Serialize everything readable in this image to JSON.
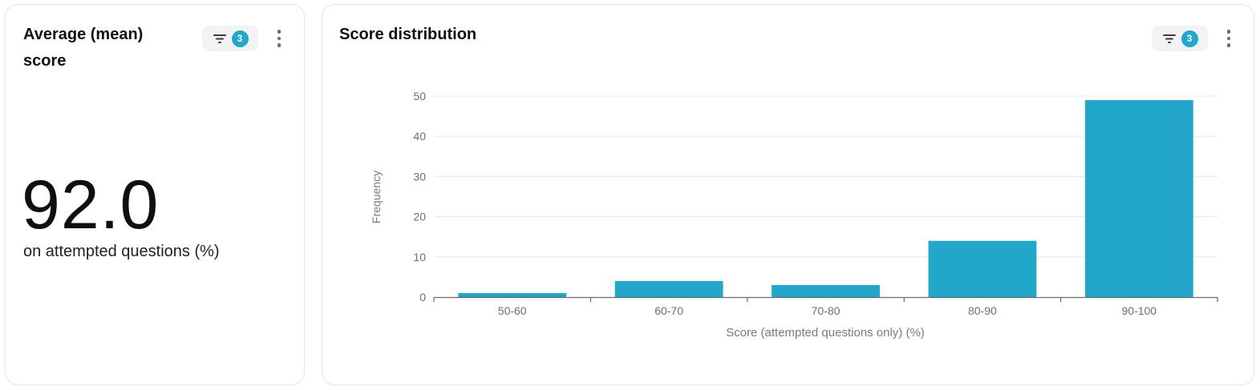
{
  "colors": {
    "accent": "#22a6c9",
    "bar": "#22a6c9",
    "grid": "#e6e8ee",
    "axis": "#6b6b74",
    "tick_text": "#6d6d75"
  },
  "mean_card": {
    "title": "Average (mean) score",
    "filter_count": "3",
    "filter_icon": "filter-icon",
    "menu_icon": "kebab-menu-icon",
    "value": "92.0",
    "caption": "on attempted questions (%)"
  },
  "dist_card": {
    "title": "Score distribution",
    "filter_count": "3",
    "filter_icon": "filter-icon",
    "menu_icon": "kebab-menu-icon"
  },
  "chart_data": {
    "type": "bar",
    "categories": [
      "50-60",
      "60-70",
      "70-80",
      "80-90",
      "90-100"
    ],
    "values": [
      1,
      4,
      3,
      14,
      49
    ],
    "title": "",
    "xlabel": "Score (attempted questions only) (%)",
    "ylabel": "Frequency",
    "ylim": [
      0,
      50
    ],
    "yticks": [
      "0",
      "10",
      "20",
      "30",
      "40",
      "50"
    ],
    "grid": true
  }
}
